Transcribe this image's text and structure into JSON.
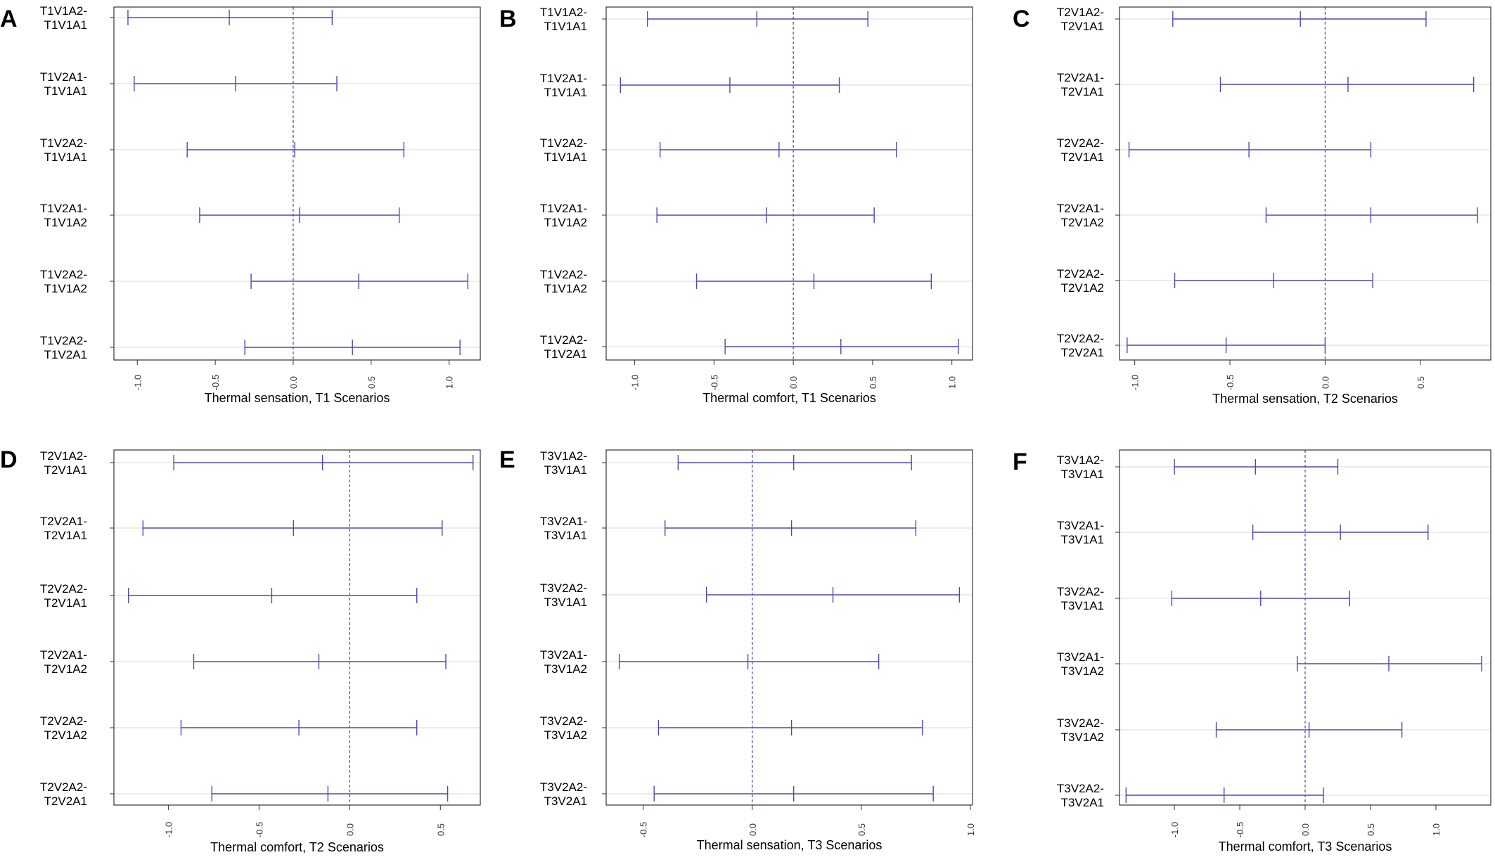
{
  "chart_data": [
    {
      "type": "interval",
      "panel": "A",
      "xlabel": "Thermal sensation, T1 Scenarios",
      "xlim": [
        -1.15,
        1.2
      ],
      "xticks": [
        "-1.0",
        "-0.5",
        "0.0",
        "0.5",
        "1.0"
      ],
      "intervals": [
        {
          "label": [
            "T1V1A2-",
            "T1V1A1"
          ],
          "lower": -1.06,
          "estimate": -0.41,
          "upper": 0.25
        },
        {
          "label": [
            "T1V2A1-",
            "T1V1A1"
          ],
          "lower": -1.02,
          "estimate": -0.37,
          "upper": 0.28
        },
        {
          "label": [
            "T1V2A2-",
            "T1V1A1"
          ],
          "lower": -0.68,
          "estimate": 0.01,
          "upper": 0.71
        },
        {
          "label": [
            "T1V2A1-",
            "T1V1A2"
          ],
          "lower": -0.6,
          "estimate": 0.04,
          "upper": 0.68
        },
        {
          "label": [
            "T1V2A2-",
            "T1V1A2"
          ],
          "lower": -0.27,
          "estimate": 0.42,
          "upper": 1.12
        },
        {
          "label": [
            "T1V2A2-",
            "T1V2A1"
          ],
          "lower": -0.31,
          "estimate": 0.38,
          "upper": 1.07
        }
      ]
    },
    {
      "type": "interval",
      "panel": "B",
      "xlabel": "Thermal comfort, T1 Scenarios",
      "xlim": [
        -1.18,
        1.13
      ],
      "xticks": [
        "-1.0",
        "-0.5",
        "0.0",
        "0.5",
        "1.0"
      ],
      "intervals": [
        {
          "label": [
            "T1V1A2-",
            "T1V1A1"
          ],
          "lower": -0.92,
          "estimate": -0.23,
          "upper": 0.47
        },
        {
          "label": [
            "T1V2A1-",
            "T1V1A1"
          ],
          "lower": -1.09,
          "estimate": -0.4,
          "upper": 0.29
        },
        {
          "label": [
            "T1V2A2-",
            "T1V1A1"
          ],
          "lower": -0.84,
          "estimate": -0.09,
          "upper": 0.65
        },
        {
          "label": [
            "T1V2A1-",
            "T1V1A2"
          ],
          "lower": -0.86,
          "estimate": -0.17,
          "upper": 0.51
        },
        {
          "label": [
            "T1V2A2-",
            "T1V1A2"
          ],
          "lower": -0.61,
          "estimate": 0.13,
          "upper": 0.87
        },
        {
          "label": [
            "T1V2A2-",
            "T1V2A1"
          ],
          "lower": -0.43,
          "estimate": 0.3,
          "upper": 1.04
        }
      ]
    },
    {
      "type": "interval",
      "panel": "C",
      "xlabel": "Thermal sensation, T2 Scenarios",
      "xlim": [
        -1.08,
        0.87
      ],
      "xticks": [
        "-1.0",
        "-0.5",
        "0.0",
        "0.5"
      ],
      "intervals": [
        {
          "label": [
            "T2V1A2-",
            "T2V1A1"
          ],
          "lower": -0.8,
          "estimate": -0.13,
          "upper": 0.53
        },
        {
          "label": [
            "T2V2A1-",
            "T2V1A1"
          ],
          "lower": -0.55,
          "estimate": 0.12,
          "upper": 0.78
        },
        {
          "label": [
            "T2V2A2-",
            "T2V1A1"
          ],
          "lower": -1.03,
          "estimate": -0.4,
          "upper": 0.24
        },
        {
          "label": [
            "T2V2A1-",
            "T2V1A2"
          ],
          "lower": -0.31,
          "estimate": 0.24,
          "upper": 0.8
        },
        {
          "label": [
            "T2V2A2-",
            "T2V1A2"
          ],
          "lower": -0.79,
          "estimate": -0.27,
          "upper": 0.25
        },
        {
          "label": [
            "T2V2A2-",
            "T2V2A1"
          ],
          "lower": -1.04,
          "estimate": -0.52,
          "upper": 0.0
        }
      ]
    },
    {
      "type": "interval",
      "panel": "D",
      "xlabel": "Thermal comfort, T2 Scenarios",
      "xlim": [
        -1.3,
        0.72
      ],
      "xticks": [
        "-1.0",
        "-0.5",
        "0.0",
        "0.5"
      ],
      "intervals": [
        {
          "label": [
            "T2V1A2-",
            "T2V1A1"
          ],
          "lower": -0.97,
          "estimate": -0.15,
          "upper": 0.68
        },
        {
          "label": [
            "T2V2A1-",
            "T2V1A1"
          ],
          "lower": -1.14,
          "estimate": -0.31,
          "upper": 0.51
        },
        {
          "label": [
            "T2V2A2-",
            "T2V1A1"
          ],
          "lower": -1.22,
          "estimate": -0.43,
          "upper": 0.37
        },
        {
          "label": [
            "T2V2A1-",
            "T2V1A2"
          ],
          "lower": -0.86,
          "estimate": -0.17,
          "upper": 0.53
        },
        {
          "label": [
            "T2V2A2-",
            "T2V1A2"
          ],
          "lower": -0.93,
          "estimate": -0.28,
          "upper": 0.37
        },
        {
          "label": [
            "T2V2A2-",
            "T2V2A1"
          ],
          "lower": -0.76,
          "estimate": -0.12,
          "upper": 0.54
        }
      ]
    },
    {
      "type": "interval",
      "panel": "E",
      "xlabel": "Thermal sensation, T3 Scenarios",
      "xlim": [
        -0.67,
        1.01
      ],
      "xticks": [
        "-0.5",
        "0.0",
        "0.5",
        "1.0"
      ],
      "intervals": [
        {
          "label": [
            "T3V1A2-",
            "T3V1A1"
          ],
          "lower": -0.34,
          "estimate": 0.19,
          "upper": 0.73
        },
        {
          "label": [
            "T3V2A1-",
            "T3V1A1"
          ],
          "lower": -0.4,
          "estimate": 0.18,
          "upper": 0.75
        },
        {
          "label": [
            "T3V2A2-",
            "T3V1A1"
          ],
          "lower": -0.21,
          "estimate": 0.37,
          "upper": 0.95
        },
        {
          "label": [
            "T3V2A1-",
            "T3V1A2"
          ],
          "lower": -0.61,
          "estimate": -0.02,
          "upper": 0.58
        },
        {
          "label": [
            "T3V2A2-",
            "T3V1A2"
          ],
          "lower": -0.43,
          "estimate": 0.18,
          "upper": 0.78
        },
        {
          "label": [
            "T3V2A2-",
            "T3V2A1"
          ],
          "lower": -0.45,
          "estimate": 0.19,
          "upper": 0.83
        }
      ]
    },
    {
      "type": "interval",
      "panel": "F",
      "xlabel": "Thermal comfort, T3 Scenarios",
      "xlim": [
        -1.42,
        1.42
      ],
      "xticks": [
        "-1.0",
        "-0.5",
        "0.0",
        "0.5",
        "1.0"
      ],
      "intervals": [
        {
          "label": [
            "T3V1A2-",
            "T3V1A1"
          ],
          "lower": -1.0,
          "estimate": -0.38,
          "upper": 0.25
        },
        {
          "label": [
            "T3V2A1-",
            "T3V1A1"
          ],
          "lower": -0.4,
          "estimate": 0.27,
          "upper": 0.94
        },
        {
          "label": [
            "T3V2A2-",
            "T3V1A1"
          ],
          "lower": -1.02,
          "estimate": -0.34,
          "upper": 0.34
        },
        {
          "label": [
            "T3V2A1-",
            "T3V1A2"
          ],
          "lower": -0.06,
          "estimate": 0.64,
          "upper": 1.35
        },
        {
          "label": [
            "T3V2A2-",
            "T3V1A2"
          ],
          "lower": -0.68,
          "estimate": 0.03,
          "upper": 0.74
        },
        {
          "label": [
            "T3V2A2-",
            "T3V2A1"
          ],
          "lower": -1.37,
          "estimate": -0.62,
          "upper": 0.14
        }
      ]
    }
  ],
  "colors": {
    "interval": "#4b4bb0",
    "zero_line": "#4040c8",
    "grid": "#d8d8d8",
    "frame": "#333333",
    "text": "#000000"
  }
}
